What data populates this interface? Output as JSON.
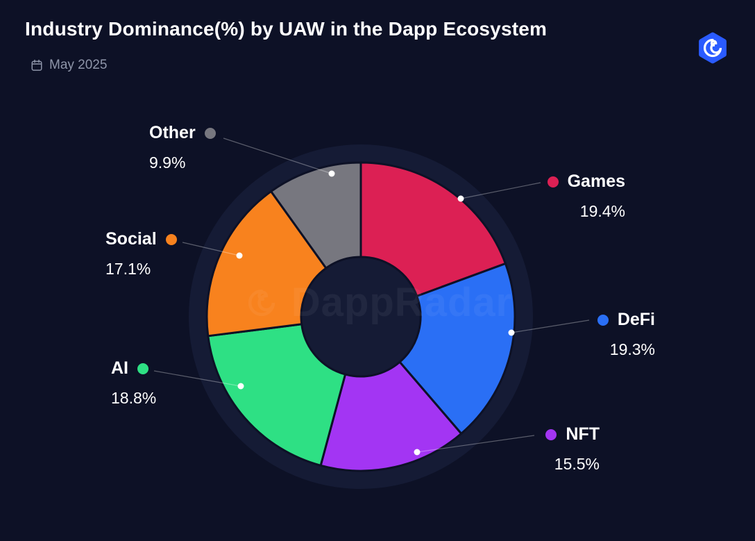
{
  "header": {
    "title": "Industry Dominance(%) by UAW in the Dapp Ecosystem",
    "date": "May 2025"
  },
  "watermark": {
    "text": "DappRadar"
  },
  "icons": {
    "calendar": "calendar-icon",
    "logo": "dappradar-logo-icon",
    "watermark_logo": "dappradar-spiral-icon"
  },
  "colors": {
    "background": "#0d1126",
    "disc": "#151b35",
    "text_primary": "#ffffff",
    "text_muted": "#8e95a9",
    "leader_line": "rgba(255,255,255,0.32)",
    "logo_blue": "#2a5bff"
  },
  "chart_data": {
    "type": "pie",
    "donut": true,
    "title": "Industry Dominance(%) by UAW in the Dapp Ecosystem",
    "subtitle": "May 2025",
    "unit": "%",
    "start_angle_deg": 0,
    "direction": "clockwise",
    "legend_position": "around-chart",
    "categories": [
      "Games",
      "DeFi",
      "NFT",
      "AI",
      "Social",
      "Other"
    ],
    "values": [
      19.4,
      19.3,
      15.5,
      18.8,
      17.1,
      9.9
    ],
    "segments": [
      {
        "name": "Games",
        "value": 19.4,
        "pct_label": "19.4%",
        "color": "#dc2054"
      },
      {
        "name": "DeFi",
        "value": 19.3,
        "pct_label": "19.3%",
        "color": "#2a6ff5"
      },
      {
        "name": "NFT",
        "value": 15.5,
        "pct_label": "15.5%",
        "color": "#a335f3"
      },
      {
        "name": "AI",
        "value": 18.8,
        "pct_label": "18.8%",
        "color": "#2ee084"
      },
      {
        "name": "Social",
        "value": 17.1,
        "pct_label": "17.1%",
        "color": "#f8821e"
      },
      {
        "name": "Other",
        "value": 9.9,
        "pct_label": "9.9%",
        "color": "#77777f"
      }
    ]
  }
}
